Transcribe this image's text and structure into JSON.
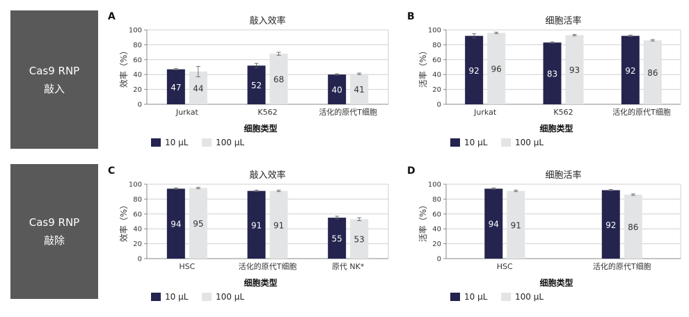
{
  "side_labels": [
    {
      "line1": "Cas9 RNP",
      "line2": "敲入"
    },
    {
      "line1": "Cas9 RNP",
      "line2": "敲除"
    }
  ],
  "colors": {
    "s10": "#24244f",
    "s100": "#e3e4e6",
    "grid": "#d0d0d0",
    "axis": "#888888",
    "err": "#555555"
  },
  "chart_data": [
    {
      "panel": "A",
      "type": "bar",
      "title": "敲入效率",
      "ylabel": "效率（%）",
      "xlabel": "细胞类型",
      "ylim": [
        0,
        100
      ],
      "yticks": [
        0,
        20,
        40,
        60,
        80,
        100
      ],
      "categories": [
        "Jurkat",
        "K562",
        "活化的原代T细胞"
      ],
      "series": [
        {
          "name": "10 µL",
          "values": [
            47,
            52,
            40
          ],
          "errors": [
            1,
            3,
            1
          ]
        },
        {
          "name": "100 µL",
          "values": [
            44,
            68,
            41
          ],
          "errors": [
            7,
            2,
            1
          ]
        }
      ],
      "legend": "bottom"
    },
    {
      "panel": "B",
      "type": "bar",
      "title": "细胞活率",
      "ylabel": "活率（%）",
      "xlabel": "细胞类型",
      "ylim": [
        0,
        100
      ],
      "yticks": [
        0,
        20,
        40,
        60,
        80,
        100
      ],
      "categories": [
        "Jurkat",
        "K562",
        "活化的原代T细胞"
      ],
      "series": [
        {
          "name": "10 µL",
          "values": [
            92,
            83,
            92
          ],
          "errors": [
            3,
            1,
            1
          ]
        },
        {
          "name": "100 µL",
          "values": [
            96,
            93,
            86
          ],
          "errors": [
            1,
            1,
            1
          ]
        }
      ],
      "legend": "bottom"
    },
    {
      "panel": "C",
      "type": "bar",
      "title": "敲入效率",
      "ylabel": "效率（%）",
      "xlabel": "细胞类型",
      "ylim": [
        0,
        100
      ],
      "yticks": [
        0,
        20,
        40,
        60,
        80,
        100
      ],
      "categories": [
        "HSC",
        "活化的原代T细胞",
        "原代 NK*"
      ],
      "series": [
        {
          "name": "10 µL",
          "values": [
            94,
            91,
            55
          ],
          "errors": [
            1,
            1,
            2
          ]
        },
        {
          "name": "100 µL",
          "values": [
            95,
            91,
            53
          ],
          "errors": [
            1,
            1,
            2
          ]
        }
      ],
      "legend": "bottom"
    },
    {
      "panel": "D",
      "type": "bar",
      "title": "细胞活率",
      "ylabel": "活率（%）",
      "xlabel": "细胞类型",
      "ylim": [
        0,
        100
      ],
      "yticks": [
        0,
        20,
        40,
        60,
        80,
        100
      ],
      "categories": [
        "HSC",
        "活化的原代T细胞"
      ],
      "series": [
        {
          "name": "10 µL",
          "values": [
            94,
            92
          ],
          "errors": [
            1,
            1
          ]
        },
        {
          "name": "100 µL",
          "values": [
            91,
            86
          ],
          "errors": [
            1,
            1
          ]
        }
      ],
      "legend": "bottom"
    }
  ]
}
